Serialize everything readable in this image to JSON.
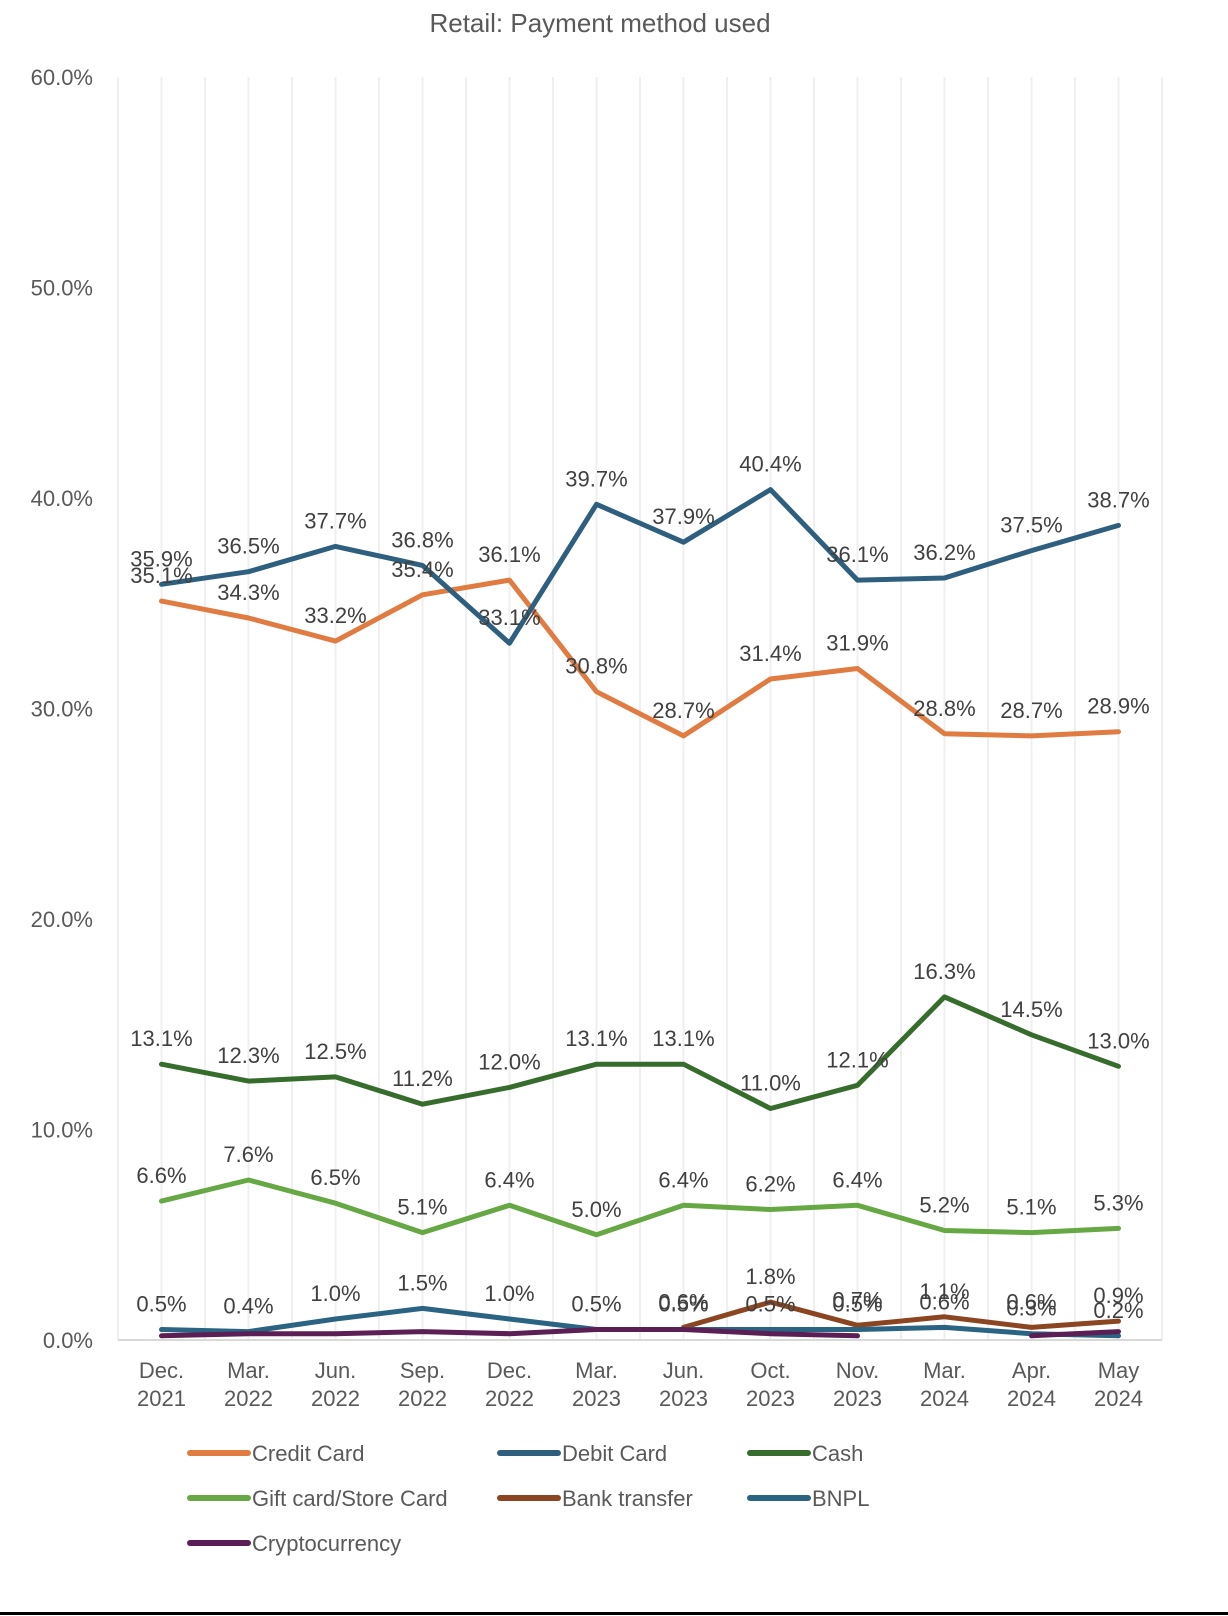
{
  "chart_data": {
    "type": "line",
    "title": "Retail: Payment method used",
    "xlabel": "",
    "ylabel": "",
    "ylim": [
      0,
      60
    ],
    "yticks": [
      "0.0%",
      "10.0%",
      "20.0%",
      "30.0%",
      "40.0%",
      "50.0%",
      "60.0%"
    ],
    "ytick_values": [
      0,
      10,
      20,
      30,
      40,
      50,
      60
    ],
    "grid": "vertical",
    "legend_position": "bottom",
    "categories": [
      [
        "Dec.",
        "2021"
      ],
      [
        "Mar.",
        "2022"
      ],
      [
        "Jun.",
        "2022"
      ],
      [
        "Sep.",
        "2022"
      ],
      [
        "Dec.",
        "2022"
      ],
      [
        "Mar.",
        "2023"
      ],
      [
        "Jun.",
        "2023"
      ],
      [
        "Oct.",
        "2023"
      ],
      [
        "Nov.",
        "2023"
      ],
      [
        "Mar.",
        "2024"
      ],
      [
        "Apr.",
        "2024"
      ],
      [
        "May",
        "2024"
      ]
    ],
    "series": [
      {
        "name": "Credit Card",
        "color": "#E07B42",
        "labels": true,
        "values": [
          35.1,
          34.3,
          33.2,
          35.4,
          36.1,
          30.8,
          28.7,
          31.4,
          31.9,
          28.8,
          28.7,
          28.9
        ]
      },
      {
        "name": "Debit Card",
        "color": "#2E5F7F",
        "labels": true,
        "values": [
          35.9,
          36.5,
          37.7,
          36.8,
          33.1,
          39.7,
          37.9,
          40.4,
          36.1,
          36.2,
          37.5,
          38.7
        ]
      },
      {
        "name": "Cash",
        "color": "#376D2C",
        "labels": true,
        "values": [
          13.1,
          12.3,
          12.5,
          11.2,
          12.0,
          13.1,
          13.1,
          11.0,
          12.1,
          16.3,
          14.5,
          13.0
        ]
      },
      {
        "name": "Gift card/Store Card",
        "color": "#66A843",
        "labels": true,
        "values": [
          6.6,
          7.6,
          6.5,
          5.1,
          6.4,
          5.0,
          6.4,
          6.2,
          6.4,
          5.2,
          5.1,
          5.3
        ]
      },
      {
        "name": "Bank transfer",
        "color": "#8B4520",
        "labels": true,
        "values": [
          null,
          null,
          null,
          null,
          null,
          null,
          0.6,
          1.8,
          0.7,
          1.1,
          0.6,
          0.9
        ]
      },
      {
        "name": "BNPL",
        "color": "#2B6383",
        "labels": true,
        "values": [
          0.5,
          0.4,
          1.0,
          1.5,
          1.0,
          0.5,
          0.5,
          0.5,
          0.5,
          0.6,
          0.3,
          0.2
        ]
      },
      {
        "name": "Cryptocurrency",
        "color": "#5C1F55",
        "labels": false,
        "values": [
          0.2,
          0.3,
          0.3,
          0.4,
          0.3,
          0.5,
          0.5,
          0.3,
          0.2,
          null,
          0.2,
          0.4
        ]
      }
    ]
  }
}
